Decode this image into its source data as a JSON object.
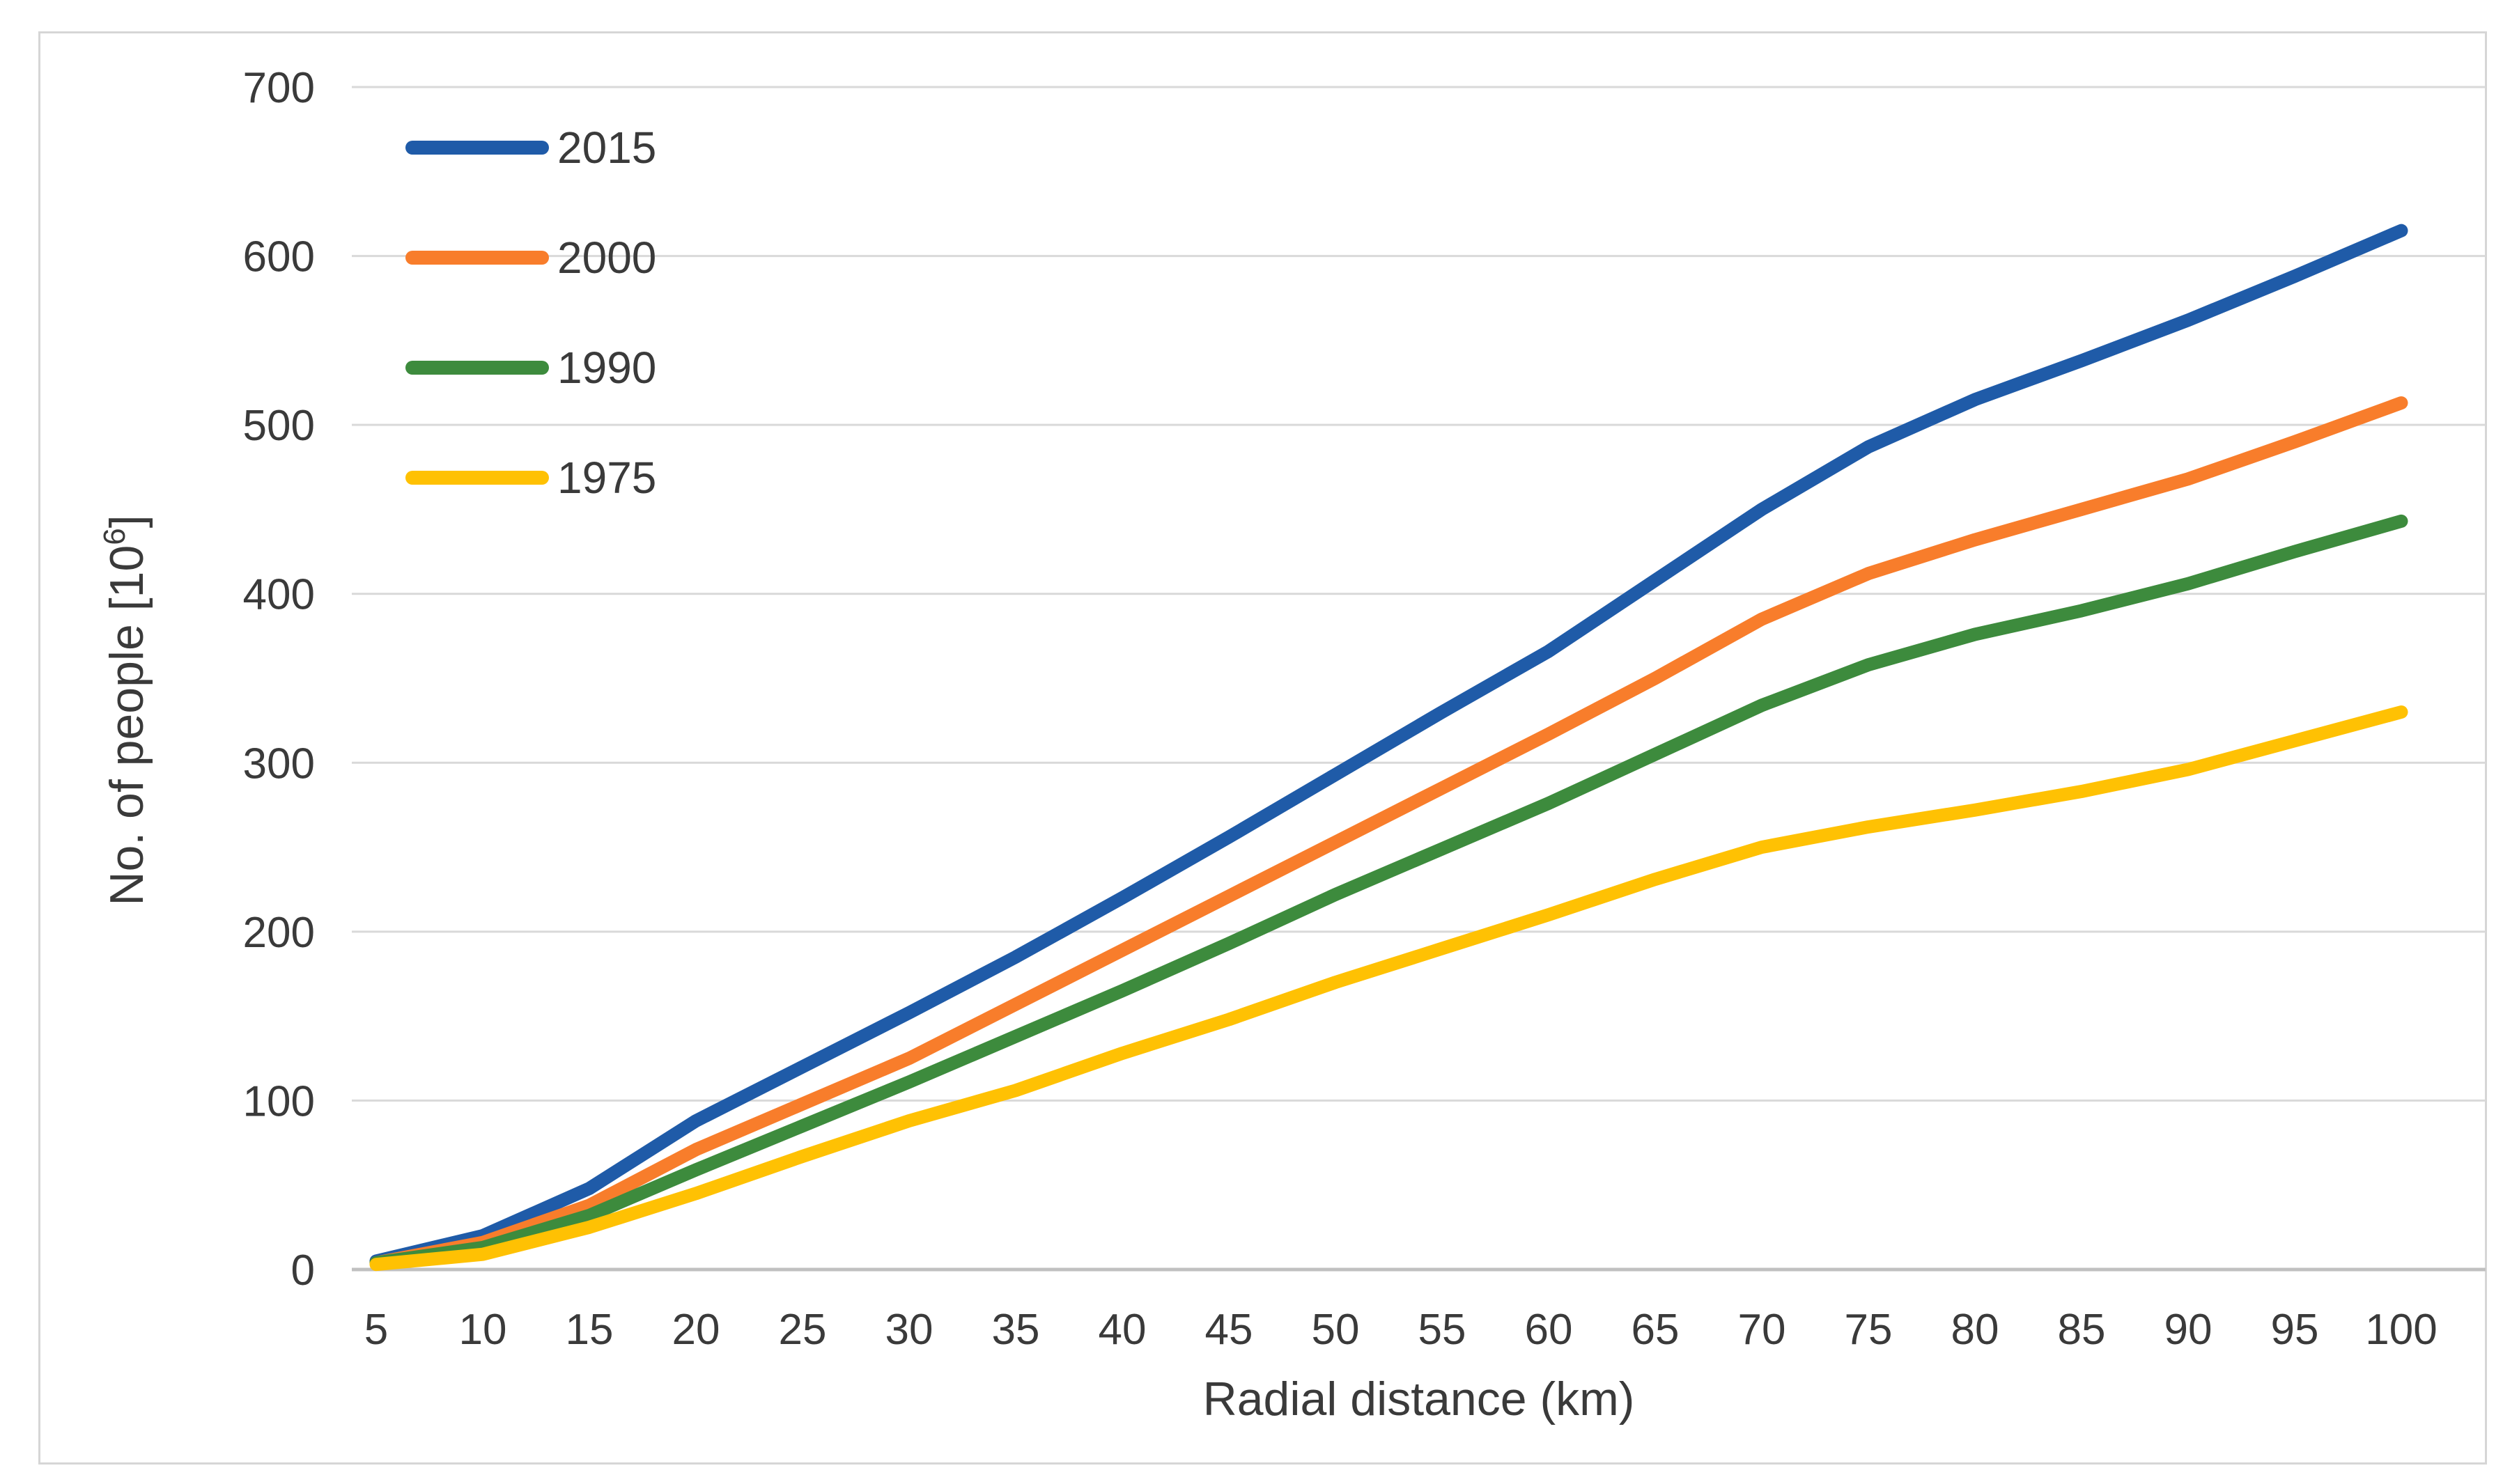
{
  "figure": {
    "background": "#ffffff",
    "border_color": "#d6d6d6"
  },
  "chart_data": {
    "type": "line",
    "title": "",
    "xlabel": "Radial distance (km)",
    "ylabel": "No. of people [10⁶]",
    "x": [
      5,
      10,
      15,
      20,
      25,
      30,
      35,
      40,
      45,
      50,
      55,
      60,
      65,
      70,
      75,
      80,
      85,
      90,
      95,
      100
    ],
    "xticks": [
      5,
      10,
      15,
      20,
      25,
      30,
      35,
      40,
      45,
      50,
      55,
      60,
      65,
      70,
      75,
      80,
      85,
      90,
      95,
      100
    ],
    "yticks": [
      0,
      100,
      200,
      300,
      400,
      500,
      600,
      700
    ],
    "ylim": [
      0,
      700
    ],
    "xlim": [
      5,
      100
    ],
    "grid": "horizontal",
    "legend_position": "top-left-inside",
    "gridline_color": "#d9d9d9",
    "axis_line_color": "#c0c0c0",
    "text_color": "#3a3a3a",
    "series": [
      {
        "name": "2015",
        "color": "#1f5ba8",
        "values": [
          5,
          20,
          48,
          88,
          120,
          152,
          185,
          220,
          256,
          293,
          330,
          366,
          408,
          450,
          487,
          515,
          538,
          562,
          588,
          615
        ]
      },
      {
        "name": "2000",
        "color": "#f87d2b",
        "values": [
          4,
          16,
          38,
          71,
          98,
          125,
          157,
          189,
          221,
          253,
          285,
          317,
          350,
          385,
          412,
          432,
          450,
          468,
          490,
          513
        ]
      },
      {
        "name": "1990",
        "color": "#3d8b3d",
        "values": [
          4,
          13,
          32,
          59,
          85,
          111,
          138,
          165,
          193,
          222,
          249,
          276,
          305,
          334,
          358,
          376,
          390,
          406,
          425,
          443
        ]
      },
      {
        "name": "1975",
        "color": "#ffc103",
        "values": [
          3,
          9,
          25,
          45,
          67,
          88,
          106,
          128,
          148,
          170,
          190,
          210,
          231,
          250,
          262,
          272,
          283,
          296,
          313,
          330
        ]
      }
    ]
  }
}
